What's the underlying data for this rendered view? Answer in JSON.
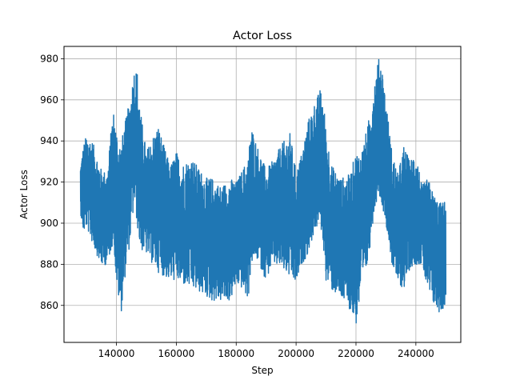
{
  "chart_data": {
    "type": "line",
    "title": "Actor Loss",
    "xlabel": "Step",
    "ylabel": "Actor Loss",
    "xlim": [
      122500,
      255000
    ],
    "ylim": [
      842,
      986
    ],
    "grid": true,
    "legend": "none",
    "x_ticks": [
      140000,
      160000,
      180000,
      200000,
      220000,
      240000
    ],
    "x_tick_labels": [
      "140000",
      "160000",
      "180000",
      "200000",
      "220000",
      "240000"
    ],
    "y_ticks": [
      860,
      880,
      900,
      920,
      940,
      960,
      980
    ],
    "y_tick_labels": [
      "860",
      "880",
      "900",
      "920",
      "940",
      "960",
      "980"
    ],
    "series": [
      {
        "color": "#1f77b4",
        "x_start": 128000,
        "x_end": 250000,
        "envelope": {
          "x": [
            128000,
            129000,
            130000,
            132000,
            135000,
            137000,
            138500,
            139000,
            140000,
            141500,
            143000,
            144500,
            146000,
            147000,
            148000,
            150000,
            152000,
            154000,
            156000,
            158000,
            160000,
            162000,
            165000,
            168000,
            170000,
            172000,
            175000,
            178000,
            180000,
            182000,
            184000,
            185000,
            187000,
            190000,
            192000,
            195000,
            198000,
            200000,
            202000,
            204000,
            206000,
            208000,
            209000,
            210000,
            212000,
            215000,
            218000,
            220000,
            222000,
            224000,
            226000,
            227500,
            228500,
            230000,
            232000,
            234000,
            236000,
            238000,
            240000,
            242000,
            244000,
            246000,
            248000,
            250000
          ],
          "upper": [
            928,
            938,
            943,
            940,
            926,
            925,
            950,
            955,
            946,
            939,
            950,
            960,
            976,
            974,
            955,
            935,
            942,
            948,
            937,
            928,
            935,
            929,
            932,
            926,
            922,
            922,
            918,
            922,
            920,
            926,
            932,
            948,
            938,
            926,
            930,
            938,
            944,
            925,
            935,
            950,
            958,
            965,
            962,
            946,
            928,
            922,
            924,
            935,
            936,
            948,
            968,
            980,
            979,
            960,
            935,
            924,
            938,
            930,
            936,
            918,
            922,
            914,
            910,
            911
          ],
          "lower": [
            905,
            895,
            898,
            890,
            879,
            880,
            888,
            893,
            870,
            855,
            875,
            890,
            910,
            898,
            887,
            885,
            880,
            876,
            874,
            872,
            872,
            870,
            868,
            866,
            864,
            862,
            862,
            862,
            870,
            868,
            862,
            880,
            882,
            872,
            880,
            878,
            873,
            870,
            880,
            885,
            895,
            900,
            890,
            872,
            867,
            863,
            858,
            850,
            868,
            880,
            905,
            915,
            910,
            900,
            880,
            870,
            868,
            878,
            880,
            880,
            866,
            860,
            856,
            860
          ]
        }
      }
    ]
  }
}
